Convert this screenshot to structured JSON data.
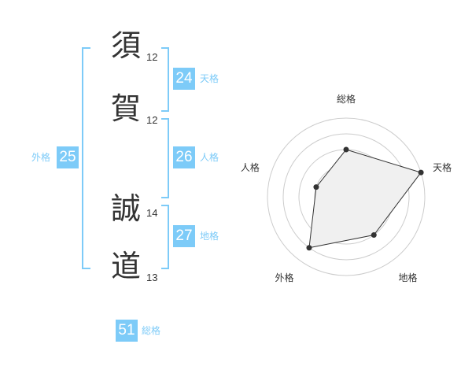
{
  "name": [
    {
      "char": "須",
      "strokes": "12"
    },
    {
      "char": "賀",
      "strokes": "12"
    },
    {
      "char": "誠",
      "strokes": "14"
    },
    {
      "char": "道",
      "strokes": "13"
    }
  ],
  "kaku": {
    "tenkaku": {
      "label": "天格",
      "value": "24"
    },
    "jinkaku": {
      "label": "人格",
      "value": "26"
    },
    "chikaku": {
      "label": "地格",
      "value": "27"
    },
    "gaikaku": {
      "label": "外格",
      "value": "25"
    },
    "soukaku": {
      "label": "総格",
      "value": "51"
    }
  },
  "colors": {
    "accent": "#7dcbf8",
    "line": "#333333",
    "fill": "#f0f0f0"
  },
  "chart_data": {
    "type": "radar",
    "axes": [
      "総格",
      "天格",
      "地格",
      "外格",
      "人格"
    ],
    "values": [
      3,
      5,
      3,
      4,
      2
    ],
    "range": [
      0,
      5
    ],
    "rings": 5
  }
}
